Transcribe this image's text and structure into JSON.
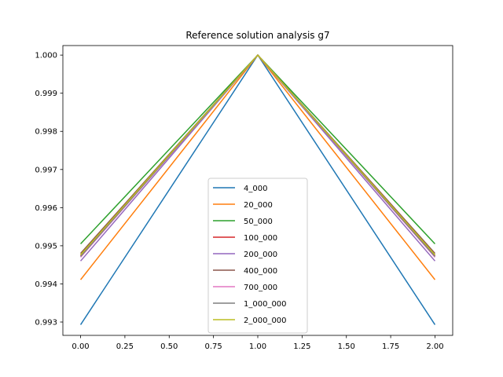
{
  "chart_data": {
    "type": "line",
    "title": "Reference solution analysis g7",
    "xlabel": "",
    "ylabel": "",
    "xlim": [
      -0.1,
      2.1
    ],
    "ylim": [
      0.99265,
      1.00025
    ],
    "grid": false,
    "legend_position": "lower-center",
    "x": [
      0,
      1,
      2
    ],
    "x_ticks": [
      {
        "v": 0.0,
        "label": "0.00"
      },
      {
        "v": 0.25,
        "label": "0.25"
      },
      {
        "v": 0.5,
        "label": "0.50"
      },
      {
        "v": 0.75,
        "label": "0.75"
      },
      {
        "v": 1.0,
        "label": "1.00"
      },
      {
        "v": 1.25,
        "label": "1.25"
      },
      {
        "v": 1.5,
        "label": "1.50"
      },
      {
        "v": 1.75,
        "label": "1.75"
      },
      {
        "v": 2.0,
        "label": "2.00"
      }
    ],
    "y_ticks": [
      {
        "v": 0.993,
        "label": "0.993"
      },
      {
        "v": 0.994,
        "label": "0.994"
      },
      {
        "v": 0.995,
        "label": "0.995"
      },
      {
        "v": 0.996,
        "label": "0.996"
      },
      {
        "v": 0.997,
        "label": "0.997"
      },
      {
        "v": 0.998,
        "label": "0.998"
      },
      {
        "v": 0.999,
        "label": "0.999"
      },
      {
        "v": 1.0,
        "label": "1.000"
      }
    ],
    "series": [
      {
        "name": "4_000",
        "color": "#1f77b4",
        "values": [
          0.99293,
          1.0,
          0.99293
        ]
      },
      {
        "name": "20_000",
        "color": "#ff7f0e",
        "values": [
          0.99411,
          1.0,
          0.99411
        ]
      },
      {
        "name": "50_000",
        "color": "#2ca02c",
        "values": [
          0.99505,
          1.0,
          0.99505
        ]
      },
      {
        "name": "100_000",
        "color": "#d62728",
        "values": [
          0.99474,
          1.0,
          0.99474
        ]
      },
      {
        "name": "200_000",
        "color": "#9467bd",
        "values": [
          0.9946,
          1.0,
          0.9946
        ]
      },
      {
        "name": "400_000",
        "color": "#8c564b",
        "values": [
          0.9948,
          1.0,
          0.9948
        ]
      },
      {
        "name": "700_000",
        "color": "#e377c2",
        "values": [
          0.9947,
          1.0,
          0.9947
        ]
      },
      {
        "name": "1_000_000",
        "color": "#7f7f7f",
        "values": [
          0.99472,
          1.0,
          0.99472
        ]
      },
      {
        "name": "2_000_000",
        "color": "#bcbd22",
        "values": [
          0.99476,
          1.0,
          0.99476
        ]
      }
    ]
  }
}
